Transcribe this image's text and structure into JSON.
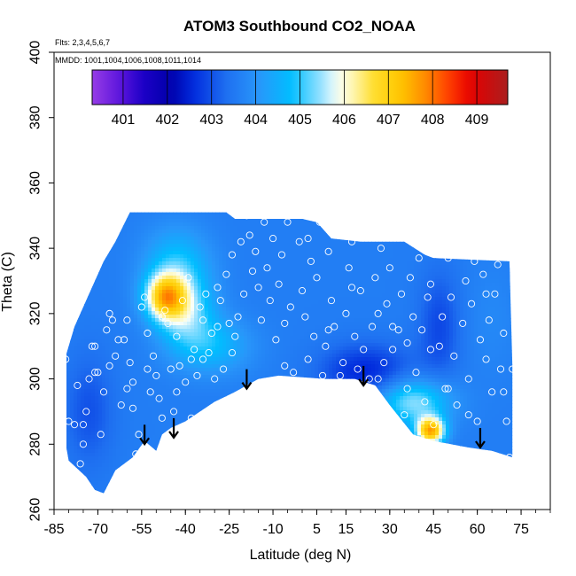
{
  "chart_data": {
    "type": "heatmap",
    "title": "ATOM3 Southbound CO2_NOAA",
    "notes": [
      "Flts: 2,3,4,5,6,7",
      "MMDD: 1001,1004,1006,1008,1011,1014"
    ],
    "xlabel": "Latitude (deg N)",
    "ylabel": "Theta (C)",
    "xlim": [
      -85,
      85
    ],
    "ylim": [
      260,
      400
    ],
    "x_ticks": [
      "-85",
      "-70",
      "-55",
      "-40",
      "-25",
      "-10",
      "5",
      "15",
      "30",
      "45",
      "60",
      "75"
    ],
    "x_tick_values": [
      -85,
      -70,
      -55,
      -40,
      -25,
      -10,
      5,
      15,
      30,
      45,
      60,
      75
    ],
    "y_ticks": [
      "260",
      "280",
      "300",
      "320",
      "340",
      "360",
      "380",
      "400"
    ],
    "y_tick_values": [
      260,
      280,
      300,
      320,
      340,
      360,
      380,
      400
    ],
    "colorbar": {
      "ticks": [
        "401",
        "402",
        "403",
        "404",
        "405",
        "406",
        "407",
        "408",
        "409"
      ],
      "tick_values": [
        401,
        402,
        403,
        404,
        405,
        406,
        407,
        408,
        409
      ],
      "range": [
        400.3,
        409.7
      ]
    },
    "field_background_value": 403.6,
    "features": [
      {
        "lat": -47,
        "theta": 325,
        "value": 406.6,
        "sigma_lat": 5,
        "sigma_theta": 5
      },
      {
        "lat": -40,
        "theta": 320,
        "value": 405.2,
        "sigma_lat": 7,
        "sigma_theta": 8
      },
      {
        "lat": -43,
        "theta": 335,
        "value": 404.8,
        "sigma_lat": 8,
        "sigma_theta": 8
      },
      {
        "lat": -30,
        "theta": 310,
        "value": 404.6,
        "sigma_lat": 9,
        "sigma_theta": 6
      },
      {
        "lat": -73,
        "theta": 290,
        "value": 403.0,
        "sigma_lat": 6,
        "sigma_theta": 12
      },
      {
        "lat": 22,
        "theta": 302,
        "value": 402.5,
        "sigma_lat": 11,
        "sigma_theta": 6
      },
      {
        "lat": 44,
        "theta": 284,
        "value": 407.4,
        "sigma_lat": 3.5,
        "sigma_theta": 3
      },
      {
        "lat": 38,
        "theta": 293,
        "value": 405.5,
        "sigma_lat": 9,
        "sigma_theta": 5
      },
      {
        "lat": 47,
        "theta": 316,
        "value": 402.9,
        "sigma_lat": 5,
        "sigma_theta": 12
      },
      {
        "lat": 65,
        "theta": 318,
        "value": 403.8,
        "sigma_lat": 6,
        "sigma_theta": 12
      }
    ],
    "coverage_top": [
      [
        -82,
        304
      ],
      [
        -78,
        316
      ],
      [
        -74,
        324
      ],
      [
        -71,
        330
      ],
      [
        -68,
        336
      ],
      [
        -64,
        342
      ],
      [
        -59,
        351
      ],
      [
        -26,
        351
      ],
      [
        -23,
        349
      ],
      [
        0,
        349
      ],
      [
        5,
        348
      ],
      [
        10,
        343
      ],
      [
        20,
        342
      ],
      [
        35,
        342
      ],
      [
        42,
        338
      ],
      [
        45,
        337
      ],
      [
        71,
        336
      ],
      [
        72,
        304
      ]
    ],
    "coverage_bottom": [
      [
        72,
        276
      ],
      [
        65,
        278
      ],
      [
        57,
        279
      ],
      [
        45,
        281
      ],
      [
        38,
        283
      ],
      [
        30,
        292
      ],
      [
        25,
        298
      ],
      [
        18,
        300
      ],
      [
        8,
        300
      ],
      [
        -8,
        301
      ],
      [
        -15,
        300
      ],
      [
        -23,
        296
      ],
      [
        -30,
        293
      ],
      [
        -40,
        287
      ],
      [
        -45,
        285
      ],
      [
        -48,
        283
      ],
      [
        -50,
        278
      ],
      [
        -54,
        281
      ],
      [
        -58,
        276
      ],
      [
        -64,
        272
      ],
      [
        -68,
        265
      ],
      [
        -71,
        266
      ],
      [
        -74,
        270
      ],
      [
        -80,
        275
      ],
      [
        -82,
        285
      ]
    ],
    "arrows": [
      [
        -54,
        280
      ],
      [
        -44,
        282
      ],
      [
        -19,
        297
      ],
      [
        21,
        298
      ],
      [
        61,
        279
      ]
    ],
    "points": [
      [
        -81,
        306
      ],
      [
        -80,
        287
      ],
      [
        -78,
        286
      ],
      [
        -77,
        298
      ],
      [
        -76,
        274
      ],
      [
        -75,
        286
      ],
      [
        -74,
        290
      ],
      [
        -73,
        300
      ],
      [
        -72,
        310
      ],
      [
        -71,
        310
      ],
      [
        -70,
        302
      ],
      [
        -69,
        283
      ],
      [
        -68,
        296
      ],
      [
        -67,
        315
      ],
      [
        -66,
        304
      ],
      [
        -65,
        318
      ],
      [
        -64,
        307
      ],
      [
        -63,
        312
      ],
      [
        -62,
        292
      ],
      [
        -61,
        312
      ],
      [
        -60,
        297
      ],
      [
        -59,
        305
      ],
      [
        -58,
        299
      ],
      [
        -57,
        277
      ],
      [
        -56,
        283
      ],
      [
        -55,
        322
      ],
      [
        -54,
        325
      ],
      [
        -53,
        314
      ],
      [
        -52,
        296
      ],
      [
        -51,
        307
      ],
      [
        -50,
        301
      ],
      [
        -49,
        294
      ],
      [
        -48,
        319
      ],
      [
        -47,
        321
      ],
      [
        -46,
        317
      ],
      [
        -45,
        303
      ],
      [
        -44,
        290
      ],
      [
        -43,
        313
      ],
      [
        -42,
        304
      ],
      [
        -41,
        324
      ],
      [
        -40,
        299
      ],
      [
        -39,
        331
      ],
      [
        -38,
        306
      ],
      [
        -37,
        309
      ],
      [
        -36,
        301
      ],
      [
        -35,
        322
      ],
      [
        -34,
        318
      ],
      [
        -33,
        326
      ],
      [
        -32,
        308
      ],
      [
        -31,
        314
      ],
      [
        -30,
        300
      ],
      [
        -29,
        328
      ],
      [
        -28,
        324
      ],
      [
        -27,
        303
      ],
      [
        -26,
        332
      ],
      [
        -25,
        317
      ],
      [
        -24,
        338
      ],
      [
        -23,
        313
      ],
      [
        -22,
        319
      ],
      [
        -21,
        342
      ],
      [
        -19,
        350
      ],
      [
        -18,
        344
      ],
      [
        -17,
        333
      ],
      [
        -16,
        339
      ],
      [
        -15,
        328
      ],
      [
        -13,
        348
      ],
      [
        -12,
        334
      ],
      [
        -11,
        324
      ],
      [
        -10,
        343
      ],
      [
        -9,
        312
      ],
      [
        -8,
        329
      ],
      [
        -7,
        338
      ],
      [
        -6,
        317
      ],
      [
        -5,
        348
      ],
      [
        -4,
        322
      ],
      [
        -3,
        302
      ],
      [
        -1,
        342
      ],
      [
        0,
        327
      ],
      [
        1,
        319
      ],
      [
        2,
        306
      ],
      [
        3,
        336
      ],
      [
        4,
        313
      ],
      [
        5,
        331
      ],
      [
        6,
        348
      ],
      [
        7,
        301
      ],
      [
        8,
        310
      ],
      [
        9,
        339
      ],
      [
        10,
        324
      ],
      [
        11,
        316
      ],
      [
        12,
        345
      ],
      [
        13,
        301
      ],
      [
        14,
        305
      ],
      [
        15,
        320
      ],
      [
        16,
        334
      ],
      [
        17,
        342
      ],
      [
        18,
        313
      ],
      [
        19,
        303
      ],
      [
        20,
        327
      ],
      [
        21,
        309
      ],
      [
        22,
        346
      ],
      [
        23,
        300
      ],
      [
        24,
        316
      ],
      [
        25,
        331
      ],
      [
        26,
        320
      ],
      [
        27,
        340
      ],
      [
        28,
        305
      ],
      [
        29,
        323
      ],
      [
        30,
        334
      ],
      [
        31,
        309
      ],
      [
        32,
        348
      ],
      [
        33,
        315
      ],
      [
        34,
        326
      ],
      [
        35,
        289
      ],
      [
        36,
        311
      ],
      [
        37,
        331
      ],
      [
        38,
        319
      ],
      [
        39,
        302
      ],
      [
        40,
        337
      ],
      [
        41,
        315
      ],
      [
        42,
        293
      ],
      [
        43,
        325
      ],
      [
        44,
        309
      ],
      [
        45,
        286
      ],
      [
        46,
        340
      ],
      [
        47,
        310
      ],
      [
        48,
        319
      ],
      [
        49,
        297
      ],
      [
        50,
        337
      ],
      [
        51,
        325
      ],
      [
        52,
        307
      ],
      [
        53,
        292
      ],
      [
        54,
        341
      ],
      [
        55,
        317
      ],
      [
        56,
        330
      ],
      [
        57,
        300
      ],
      [
        58,
        323
      ],
      [
        59,
        336
      ],
      [
        60,
        287
      ],
      [
        61,
        312
      ],
      [
        62,
        332
      ],
      [
        63,
        306
      ],
      [
        64,
        318
      ],
      [
        65,
        296
      ],
      [
        66,
        326
      ],
      [
        67,
        335
      ],
      [
        68,
        303
      ],
      [
        69,
        314
      ],
      [
        70,
        287
      ],
      [
        71,
        276
      ],
      [
        72,
        303
      ],
      [
        -71,
        302
      ],
      [
        -75,
        280
      ],
      [
        -66,
        320
      ],
      [
        -60,
        318
      ],
      [
        -58,
        291
      ],
      [
        -53,
        303
      ],
      [
        -48,
        288
      ],
      [
        -43,
        296
      ],
      [
        -38,
        288
      ],
      [
        -34,
        306
      ],
      [
        -29,
        316
      ],
      [
        -24,
        308
      ],
      [
        -20,
        326
      ],
      [
        -14,
        318
      ],
      [
        -6,
        304
      ],
      [
        2,
        343
      ],
      [
        9,
        315
      ],
      [
        17,
        328
      ],
      [
        26,
        300
      ],
      [
        31,
        316
      ],
      [
        36,
        297
      ],
      [
        44,
        329
      ],
      [
        50,
        297
      ],
      [
        57,
        289
      ],
      [
        63,
        326
      ],
      [
        69,
        296
      ]
    ]
  }
}
